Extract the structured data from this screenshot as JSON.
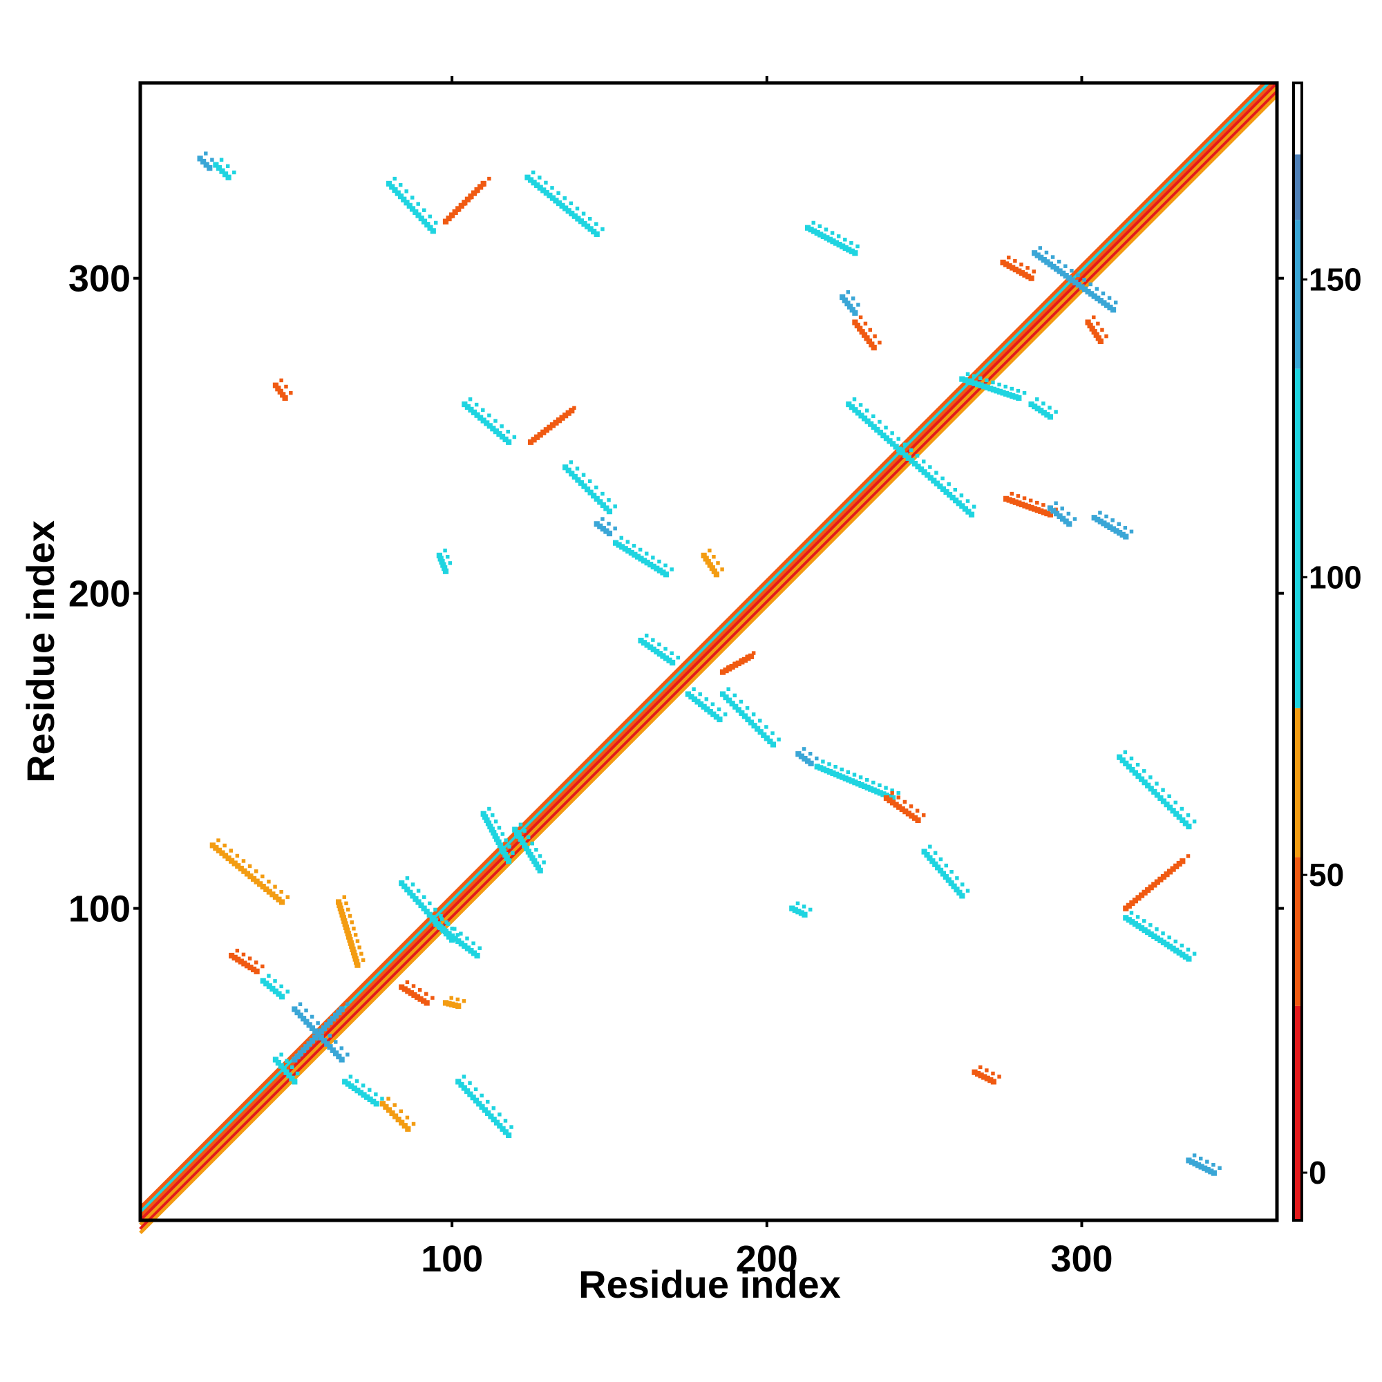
{
  "chart_data": {
    "type": "heatmap",
    "title": "",
    "xlabel": "Residue index",
    "ylabel": "Residue index",
    "xlim": [
      1,
      362
    ],
    "ylim": [
      1,
      362
    ],
    "x_ticks": [
      "100",
      "200",
      "300"
    ],
    "y_ticks": [
      "100",
      "200",
      "300"
    ],
    "grid": false,
    "legend": "colorbar, right",
    "colorbar": {
      "ticks": [
        "0",
        "50",
        "100",
        "150"
      ],
      "range": [
        -8,
        183
      ],
      "bands": [
        {
          "from": -8,
          "to": 28,
          "color": "#e31a1c"
        },
        {
          "from": 28,
          "to": 53,
          "color": "#f05a12"
        },
        {
          "from": 53,
          "to": 78,
          "color": "#f39c12"
        },
        {
          "from": 78,
          "to": 135,
          "color": "#1fd4e0"
        },
        {
          "from": 135,
          "to": 160,
          "color": "#3aa6d6"
        },
        {
          "from": 160,
          "to": 171,
          "color": "#4f80b8"
        },
        {
          "from": 171,
          "to": 183,
          "color": "#ffffff"
        }
      ]
    },
    "diagonal": {
      "from": 1,
      "to": 362,
      "colors": [
        "#e31a1c",
        "#f05a12",
        "#f39c12",
        "#1fd4e0"
      ]
    },
    "contact_clusters": [
      {
        "x": [
          20,
          23
        ],
        "y": [
          338,
          335
        ],
        "color": "#3aa6d6"
      },
      {
        "x": [
          25,
          29
        ],
        "y": [
          336,
          332
        ],
        "color": "#1fd4e0"
      },
      {
        "x": [
          80,
          94
        ],
        "y": [
          330,
          315
        ],
        "color": "#1fd4e0"
      },
      {
        "x": [
          98,
          110
        ],
        "y": [
          318,
          330
        ],
        "color": "#f05a12"
      },
      {
        "x": [
          124,
          146
        ],
        "y": [
          332,
          314
        ],
        "color": "#1fd4e0"
      },
      {
        "x": [
          44,
          47
        ],
        "y": [
          266,
          262
        ],
        "color": "#f05a12"
      },
      {
        "x": [
          104,
          118
        ],
        "y": [
          260,
          248
        ],
        "color": "#1fd4e0"
      },
      {
        "x": [
          125,
          138
        ],
        "y": [
          248,
          258
        ],
        "color": "#f05a12"
      },
      {
        "x": [
          136,
          150
        ],
        "y": [
          240,
          226
        ],
        "color": "#1fd4e0"
      },
      {
        "x": [
          146,
          150
        ],
        "y": [
          222,
          219
        ],
        "color": "#3aa6d6"
      },
      {
        "x": [
          152,
          168
        ],
        "y": [
          216,
          206
        ],
        "color": "#1fd4e0"
      },
      {
        "x": [
          96,
          98
        ],
        "y": [
          212,
          207
        ],
        "color": "#1fd4e0"
      },
      {
        "x": [
          180,
          184
        ],
        "y": [
          212,
          206
        ],
        "color": "#f39c12"
      },
      {
        "x": [
          213,
          228
        ],
        "y": [
          316,
          308
        ],
        "color": "#1fd4e0"
      },
      {
        "x": [
          224,
          228
        ],
        "y": [
          294,
          289
        ],
        "color": "#3aa6d6"
      },
      {
        "x": [
          228,
          234
        ],
        "y": [
          286,
          278
        ],
        "color": "#f05a12"
      },
      {
        "x": [
          226,
          265
        ],
        "y": [
          260,
          225
        ],
        "color": "#1fd4e0"
      },
      {
        "x": [
          276,
          290
        ],
        "y": [
          230,
          225
        ],
        "color": "#f05a12"
      },
      {
        "x": [
          290,
          296
        ],
        "y": [
          227,
          222
        ],
        "color": "#3aa6d6"
      },
      {
        "x": [
          304,
          314
        ],
        "y": [
          224,
          218
        ],
        "color": "#3aa6d6"
      },
      {
        "x": [
          275,
          284
        ],
        "y": [
          305,
          300
        ],
        "color": "#f05a12"
      },
      {
        "x": [
          285,
          310
        ],
        "y": [
          308,
          290
        ],
        "color": "#3aa6d6"
      },
      {
        "x": [
          302,
          306
        ],
        "y": [
          286,
          280
        ],
        "color": "#f05a12"
      },
      {
        "x": [
          262,
          280
        ],
        "y": [
          268,
          262
        ],
        "color": "#1fd4e0"
      },
      {
        "x": [
          284,
          290
        ],
        "y": [
          260,
          256
        ],
        "color": "#1fd4e0"
      },
      {
        "x": [
          186,
          195
        ],
        "y": [
          175,
          180
        ],
        "color": "#f05a12"
      },
      {
        "x": [
          160,
          170
        ],
        "y": [
          185,
          178
        ],
        "color": "#1fd4e0"
      },
      {
        "x": [
          175,
          185
        ],
        "y": [
          168,
          160
        ],
        "color": "#1fd4e0"
      },
      {
        "x": [
          186,
          202
        ],
        "y": [
          168,
          152
        ],
        "color": "#1fd4e0"
      },
      {
        "x": [
          210,
          214
        ],
        "y": [
          149,
          146
        ],
        "color": "#3aa6d6"
      },
      {
        "x": [
          216,
          240
        ],
        "y": [
          145,
          135
        ],
        "color": "#1fd4e0"
      },
      {
        "x": [
          238,
          248
        ],
        "y": [
          135,
          128
        ],
        "color": "#f05a12"
      },
      {
        "x": [
          250,
          262
        ],
        "y": [
          118,
          104
        ],
        "color": "#1fd4e0"
      },
      {
        "x": [
          312,
          334
        ],
        "y": [
          148,
          126
        ],
        "color": "#1fd4e0"
      },
      {
        "x": [
          314,
          332
        ],
        "y": [
          100,
          115
        ],
        "color": "#f05a12"
      },
      {
        "x": [
          314,
          334
        ],
        "y": [
          97,
          84
        ],
        "color": "#1fd4e0"
      },
      {
        "x": [
          208,
          212
        ],
        "y": [
          100,
          98
        ],
        "color": "#1fd4e0"
      },
      {
        "x": [
          120,
          128
        ],
        "y": [
          125,
          112
        ],
        "color": "#1fd4e0"
      },
      {
        "x": [
          110,
          118
        ],
        "y": [
          130,
          115
        ],
        "color": "#1fd4e0"
      },
      {
        "x": [
          24,
          46
        ],
        "y": [
          120,
          102
        ],
        "color": "#f39c12"
      },
      {
        "x": [
          30,
          38
        ],
        "y": [
          85,
          80
        ],
        "color": "#f05a12"
      },
      {
        "x": [
          40,
          46
        ],
        "y": [
          77,
          72
        ],
        "color": "#1fd4e0"
      },
      {
        "x": [
          64,
          70
        ],
        "y": [
          102,
          82
        ],
        "color": "#f39c12"
      },
      {
        "x": [
          84,
          100
        ],
        "y": [
          108,
          90
        ],
        "color": "#1fd4e0"
      },
      {
        "x": [
          95,
          108
        ],
        "y": [
          95,
          85
        ],
        "color": "#1fd4e0"
      },
      {
        "x": [
          84,
          92
        ],
        "y": [
          75,
          70
        ],
        "color": "#f05a12"
      },
      {
        "x": [
          98,
          102
        ],
        "y": [
          70,
          69
        ],
        "color": "#f39c12"
      },
      {
        "x": [
          50,
          65
        ],
        "y": [
          68,
          52
        ],
        "color": "#3aa6d6"
      },
      {
        "x": [
          50,
          65
        ],
        "y": [
          52,
          68
        ],
        "color": "#3aa6d6"
      },
      {
        "x": [
          44,
          50
        ],
        "y": [
          52,
          45
        ],
        "color": "#1fd4e0"
      },
      {
        "x": [
          66,
          76
        ],
        "y": [
          45,
          38
        ],
        "color": "#1fd4e0"
      },
      {
        "x": [
          78,
          86
        ],
        "y": [
          38,
          30
        ],
        "color": "#f39c12"
      },
      {
        "x": [
          102,
          118
        ],
        "y": [
          45,
          28
        ],
        "color": "#1fd4e0"
      },
      {
        "x": [
          266,
          272
        ],
        "y": [
          48,
          45
        ],
        "color": "#f05a12"
      },
      {
        "x": [
          334,
          342
        ],
        "y": [
          20,
          16
        ],
        "color": "#3aa6d6"
      }
    ]
  }
}
